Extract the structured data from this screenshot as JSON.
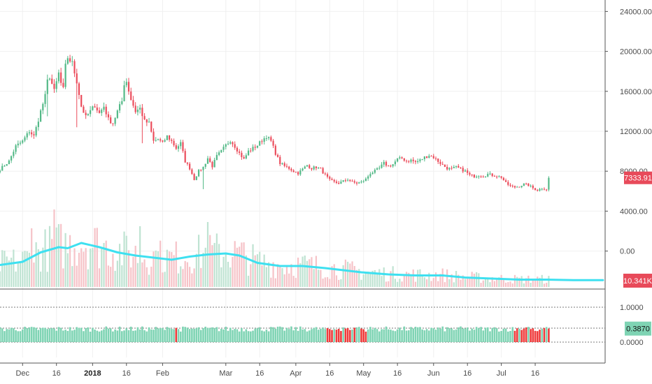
{
  "colors": {
    "up": "#53b987",
    "down": "#eb4d5c",
    "volume_up": "#bfe3d2",
    "volume_down": "#f6c3c8",
    "volume_ma": "#3ee0f0",
    "osc_normal": "#7fd4b4",
    "osc_highlight": "#ef3b3b",
    "price_tag": "#e84a5a",
    "osc_tag": "#7fd4b4",
    "grid": "#f0f0f0",
    "axis_line": "#555555"
  },
  "chart_data": [
    {
      "type": "candlestick",
      "name": "price",
      "y_axis_labels": [
        "24000.00",
        "20000.00",
        "16000.00",
        "12000.00",
        "8000.00",
        "4000.00",
        "0.00"
      ],
      "y_axis_values": [
        24000,
        20000,
        16000,
        12000,
        8000,
        4000,
        0
      ],
      "ylim": [
        0,
        28000
      ],
      "last_price_label": "7333.91",
      "last_price": 7333.91,
      "x_start_date": "2017-11-21",
      "x_end_date": "2018-07-22",
      "close_series": [
        [
          0,
          8200
        ],
        [
          4,
          9000
        ],
        [
          7,
          10500
        ],
        [
          10,
          11000
        ],
        [
          13,
          12000
        ],
        [
          15,
          11500
        ],
        [
          18,
          14000
        ],
        [
          20,
          15500
        ],
        [
          21,
          17000
        ],
        [
          22,
          17500
        ],
        [
          24,
          16000
        ],
        [
          26,
          17800
        ],
        [
          27,
          16800
        ],
        [
          28,
          16200
        ],
        [
          29,
          18500
        ],
        [
          30,
          19400
        ],
        [
          32,
          18800
        ],
        [
          34,
          17000
        ],
        [
          36,
          14500
        ],
        [
          38,
          13400
        ],
        [
          40,
          14000
        ],
        [
          42,
          14600
        ],
        [
          44,
          13800
        ],
        [
          46,
          14500
        ],
        [
          48,
          13200
        ],
        [
          50,
          12800
        ],
        [
          52,
          14000
        ],
        [
          54,
          15000
        ],
        [
          55,
          16800
        ],
        [
          56,
          17000
        ],
        [
          58,
          15200
        ],
        [
          60,
          14000
        ],
        [
          62,
          14300
        ],
        [
          64,
          13000
        ],
        [
          66,
          12800
        ],
        [
          68,
          11000
        ],
        [
          70,
          11200
        ],
        [
          72,
          10800
        ],
        [
          74,
          11500
        ],
        [
          76,
          11000
        ],
        [
          78,
          10300
        ],
        [
          80,
          10800
        ],
        [
          82,
          9000
        ],
        [
          84,
          8300
        ],
        [
          86,
          7200
        ],
        [
          88,
          8000
        ],
        [
          90,
          8400
        ],
        [
          92,
          9300
        ],
        [
          94,
          8500
        ],
        [
          96,
          9500
        ],
        [
          98,
          10000
        ],
        [
          100,
          10600
        ],
        [
          102,
          11100
        ],
        [
          104,
          10500
        ],
        [
          106,
          9800
        ],
        [
          108,
          9200
        ],
        [
          110,
          10000
        ],
        [
          112,
          10300
        ],
        [
          114,
          10600
        ],
        [
          116,
          11100
        ],
        [
          118,
          11500
        ],
        [
          120,
          11000
        ],
        [
          122,
          9800
        ],
        [
          124,
          8800
        ],
        [
          126,
          8500
        ],
        [
          128,
          8300
        ],
        [
          130,
          8000
        ],
        [
          132,
          7800
        ],
        [
          134,
          8200
        ],
        [
          136,
          8600
        ],
        [
          138,
          8300
        ],
        [
          140,
          8400
        ],
        [
          142,
          8200
        ],
        [
          144,
          7600
        ],
        [
          146,
          7100
        ],
        [
          148,
          6900
        ],
        [
          150,
          6800
        ],
        [
          152,
          7000
        ],
        [
          154,
          7200
        ],
        [
          156,
          6900
        ],
        [
          158,
          6800
        ],
        [
          160,
          6900
        ],
        [
          162,
          7200
        ],
        [
          164,
          7800
        ],
        [
          166,
          8000
        ],
        [
          168,
          8300
        ],
        [
          170,
          8800
        ],
        [
          172,
          8500
        ],
        [
          174,
          8700
        ],
        [
          176,
          9200
        ],
        [
          178,
          9300
        ],
        [
          180,
          9000
        ],
        [
          182,
          9100
        ],
        [
          184,
          8900
        ],
        [
          186,
          9100
        ],
        [
          188,
          9400
        ],
        [
          190,
          9600
        ],
        [
          192,
          9400
        ],
        [
          194,
          9000
        ],
        [
          196,
          8600
        ],
        [
          198,
          8300
        ],
        [
          200,
          8200
        ],
        [
          202,
          8400
        ],
        [
          204,
          8200
        ],
        [
          206,
          8000
        ],
        [
          208,
          7600
        ],
        [
          210,
          7500
        ],
        [
          212,
          7600
        ],
        [
          214,
          7500
        ],
        [
          216,
          7700
        ],
        [
          218,
          7600
        ],
        [
          220,
          7500
        ],
        [
          222,
          7400
        ],
        [
          224,
          6800
        ],
        [
          226,
          6500
        ],
        [
          228,
          6400
        ],
        [
          230,
          6500
        ],
        [
          232,
          6700
        ],
        [
          234,
          6600
        ],
        [
          236,
          6300
        ],
        [
          238,
          6100
        ],
        [
          240,
          6300
        ],
        [
          242,
          6200
        ],
        [
          244,
          6300
        ],
        [
          246,
          6500
        ],
        [
          248,
          6600
        ],
        [
          250,
          6700
        ],
        [
          252,
          6600
        ],
        [
          254,
          6500
        ],
        [
          256,
          6400
        ],
        [
          258,
          6300
        ],
        [
          260,
          6500
        ],
        [
          262,
          7200
        ],
        [
          264,
          7400
        ],
        [
          266,
          7300
        ],
        [
          267,
          7333.91
        ]
      ],
      "deep_wicks": [
        [
          21,
          13500
        ],
        [
          34,
          12400
        ],
        [
          63,
          10800
        ],
        [
          90,
          6200
        ]
      ]
    },
    {
      "type": "bar",
      "name": "volume",
      "value_label": "10.341K",
      "moving_average": [
        [
          0,
          0.21
        ],
        [
          10,
          0.24
        ],
        [
          18,
          0.33
        ],
        [
          26,
          0.38
        ],
        [
          30,
          0.37
        ],
        [
          36,
          0.42
        ],
        [
          44,
          0.38
        ],
        [
          52,
          0.33
        ],
        [
          60,
          0.3
        ],
        [
          68,
          0.28
        ],
        [
          76,
          0.26
        ],
        [
          84,
          0.29
        ],
        [
          92,
          0.31
        ],
        [
          100,
          0.32
        ],
        [
          106,
          0.3
        ],
        [
          114,
          0.23
        ],
        [
          124,
          0.2
        ],
        [
          134,
          0.2
        ],
        [
          144,
          0.18
        ],
        [
          152,
          0.16
        ],
        [
          160,
          0.14
        ],
        [
          172,
          0.12
        ],
        [
          184,
          0.11
        ],
        [
          196,
          0.11
        ],
        [
          206,
          0.09
        ],
        [
          218,
          0.08
        ],
        [
          230,
          0.07
        ],
        [
          242,
          0.07
        ],
        [
          254,
          0.065
        ],
        [
          267,
          0.065
        ]
      ],
      "spikes": [
        [
          14,
          0.56
        ],
        [
          24,
          0.74
        ],
        [
          26,
          0.6
        ],
        [
          62,
          0.58
        ],
        [
          70,
          0.34
        ],
        [
          92,
          0.62
        ]
      ]
    },
    {
      "type": "bar",
      "name": "oscillator",
      "y_axis_labels": [
        "1.0000",
        "0.0000"
      ],
      "y_axis_values": [
        1,
        0
      ],
      "dotted_levels": [
        1.0,
        0.4,
        0.0
      ],
      "last_value_label": "0.3870",
      "last_value": 0.387,
      "typical_range": [
        0.3,
        0.45
      ],
      "highlight_ranges": [
        [
          76,
          78
        ],
        [
          145,
          162
        ],
        [
          228,
          244
        ]
      ]
    }
  ],
  "x_axis": {
    "labels": [
      "Dec",
      "16",
      "2018",
      "16",
      "Feb",
      "Mar",
      "16",
      "Apr",
      "16",
      "May",
      "16",
      "Jun",
      "16",
      "Jul",
      "16"
    ],
    "dates": [
      "2017-12-01",
      "2017-12-16",
      "2018-01-01",
      "2018-01-16",
      "2018-02-01",
      "2018-03-01",
      "2018-03-16",
      "2018-04-01",
      "2018-04-16",
      "2018-05-01",
      "2018-05-16",
      "2018-06-01",
      "2018-06-16",
      "2018-07-01",
      "2018-07-16"
    ],
    "bold": [
      "2018"
    ]
  }
}
